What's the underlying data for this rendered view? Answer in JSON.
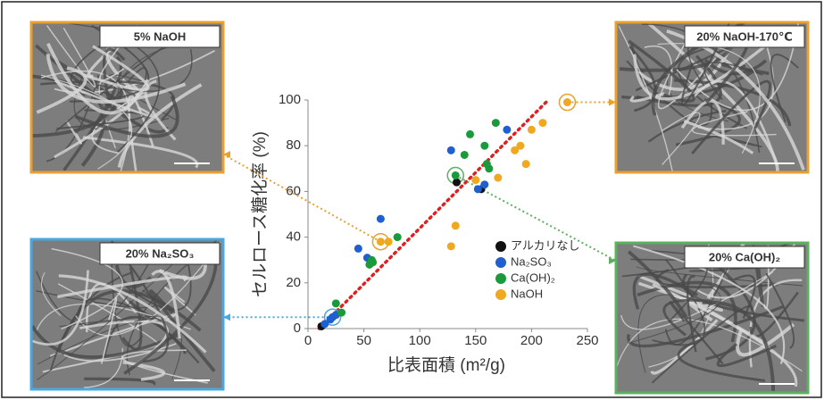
{
  "chart_data": {
    "type": "scatter",
    "x_label": "比表面積 (m²/g)",
    "y_label": "セルロース糖化率 (%)",
    "xlim": [
      0,
      250
    ],
    "xticks": [
      0,
      50,
      100,
      150,
      200,
      250
    ],
    "ylim": [
      0,
      100
    ],
    "yticks": [
      0,
      20,
      40,
      60,
      80,
      100
    ],
    "series": [
      {
        "name": "アルカリなし",
        "color": "#111111",
        "x": [
          12,
          133,
          155
        ],
        "values": [
          1,
          64,
          61
        ]
      },
      {
        "name": "Na₂SO₃",
        "color": "#1f5fd0",
        "x": [
          15,
          20,
          22,
          25,
          45,
          53,
          65,
          128,
          152,
          158,
          178
        ],
        "values": [
          2,
          4,
          5,
          6,
          35,
          31,
          48,
          78,
          61,
          63,
          87
        ]
      },
      {
        "name": "Ca(OH)₂",
        "color": "#1a9a3a",
        "x": [
          25,
          30,
          55,
          57,
          58,
          80,
          132,
          140,
          145,
          158,
          160,
          162,
          168
        ],
        "values": [
          11,
          7,
          28,
          30,
          29,
          40,
          67,
          76,
          85,
          80,
          72,
          70,
          90
        ]
      },
      {
        "name": "NaOH",
        "color": "#f0a820",
        "x": [
          65,
          72,
          128,
          132,
          150,
          170,
          185,
          190,
          195,
          200,
          210,
          232
        ],
        "values": [
          38,
          38,
          36,
          45,
          65,
          66,
          78,
          80,
          72,
          87,
          90,
          99
        ]
      }
    ],
    "trend_line": {
      "color": "#e02020",
      "x": [
        10,
        215
      ],
      "values": [
        0,
        100
      ]
    },
    "callouts": [
      {
        "label": "5% NaOH",
        "series": 3,
        "point": 0,
        "color": "#e8a030"
      },
      {
        "label": "20% NaOH-170℃",
        "series": 3,
        "point": 11,
        "color": "#e8a030"
      },
      {
        "label": "20% Na₂SO₃",
        "series": 1,
        "point": 2,
        "color": "#4aa8e0"
      },
      {
        "label": "20% Ca(OH)₂",
        "series": 2,
        "point": 6,
        "color": "#5cb060"
      }
    ]
  }
}
